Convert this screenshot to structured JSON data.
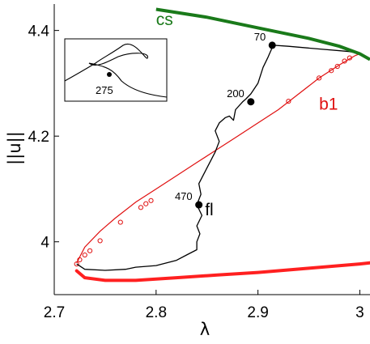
{
  "chart_data": {
    "type": "line",
    "xlabel": "λ",
    "ylabel": "||u||",
    "xlim": [
      2.7,
      3.01
    ],
    "ylim": [
      3.9,
      4.45
    ],
    "xticks": [
      {
        "value": 2.7,
        "label": "2.7"
      },
      {
        "value": 2.8,
        "label": "2.8"
      },
      {
        "value": 2.9,
        "label": "2.9"
      },
      {
        "value": 3.0,
        "label": "3"
      }
    ],
    "yticks": [
      {
        "value": 4.0,
        "label": "4"
      },
      {
        "value": 4.2,
        "label": "4.2"
      },
      {
        "value": 4.4,
        "label": "4.4"
      }
    ],
    "colors": {
      "cs": "#1a7a1a",
      "b1": "#e01010",
      "fl": "#000000",
      "b1_lower": "#ff2020"
    },
    "series": [
      {
        "name": "cs",
        "x": [
          2.8,
          2.85,
          2.9,
          2.95,
          2.98,
          3.0,
          3.01
        ],
        "y": [
          4.44,
          4.425,
          4.405,
          4.385,
          4.37,
          4.356,
          4.345
        ]
      },
      {
        "name": "b1",
        "x": [
          2.722,
          2.73,
          2.745,
          2.76,
          2.78,
          2.8,
          2.82,
          2.84,
          2.86,
          2.88,
          2.9,
          2.92,
          2.94,
          2.96,
          2.98,
          2.995,
          3.0
        ],
        "y": [
          3.96,
          3.99,
          4.02,
          4.045,
          4.075,
          4.1,
          4.125,
          4.15,
          4.175,
          4.2,
          4.225,
          4.25,
          4.28,
          4.31,
          4.335,
          4.352,
          4.356
        ],
        "markers_x": [
          2.722,
          2.725,
          2.73,
          2.735,
          2.745,
          2.765,
          2.785,
          2.79,
          2.795,
          2.93,
          2.96,
          2.972,
          2.978,
          2.985,
          2.99
        ],
        "markers_y": [
          3.958,
          3.966,
          3.975,
          3.983,
          4.002,
          4.037,
          4.065,
          4.072,
          4.078,
          4.266,
          4.31,
          4.324,
          4.332,
          4.342,
          4.348
        ]
      },
      {
        "name": "b1_lower",
        "x": [
          2.722,
          2.73,
          2.75,
          2.78,
          2.82,
          2.86,
          2.9,
          2.95,
          3.0,
          3.01
        ],
        "y": [
          3.945,
          3.932,
          3.927,
          3.927,
          3.932,
          3.937,
          3.942,
          3.95,
          3.958,
          3.96
        ]
      },
      {
        "name": "fl",
        "x": [
          2.722,
          2.73,
          2.75,
          2.77,
          2.78,
          2.8,
          2.82,
          2.83,
          2.84,
          2.84,
          2.843,
          2.84,
          2.845,
          2.84,
          2.844,
          2.842,
          2.85,
          2.858,
          2.862,
          2.858,
          2.862,
          2.868,
          2.872,
          2.876,
          2.878,
          2.885,
          2.888,
          2.893,
          2.9,
          2.905,
          2.91,
          2.915,
          2.93,
          2.96,
          2.99,
          3.0
        ],
        "y": [
          3.958,
          3.948,
          3.946,
          3.948,
          3.952,
          3.955,
          3.965,
          3.975,
          3.985,
          4.0,
          4.015,
          4.03,
          4.05,
          4.07,
          4.09,
          4.11,
          4.14,
          4.17,
          4.19,
          4.21,
          4.225,
          4.235,
          4.238,
          4.23,
          4.25,
          4.265,
          4.27,
          4.28,
          4.3,
          4.33,
          4.35,
          4.372,
          4.37,
          4.365,
          4.36,
          4.356
        ]
      }
    ],
    "points": [
      {
        "label": "70",
        "x": 2.914,
        "y": 4.372
      },
      {
        "label": "200",
        "x": 2.893,
        "y": 4.265
      },
      {
        "label": "470",
        "x": 2.842,
        "y": 4.07
      }
    ],
    "series_labels": [
      {
        "text": "cs",
        "x": 2.8,
        "y": 4.41
      },
      {
        "text": "b1",
        "x": 2.96,
        "y": 4.25
      },
      {
        "text": "fl",
        "x": 2.848,
        "y": 4.05
      }
    ],
    "inset": {
      "point_label": "275"
    }
  }
}
